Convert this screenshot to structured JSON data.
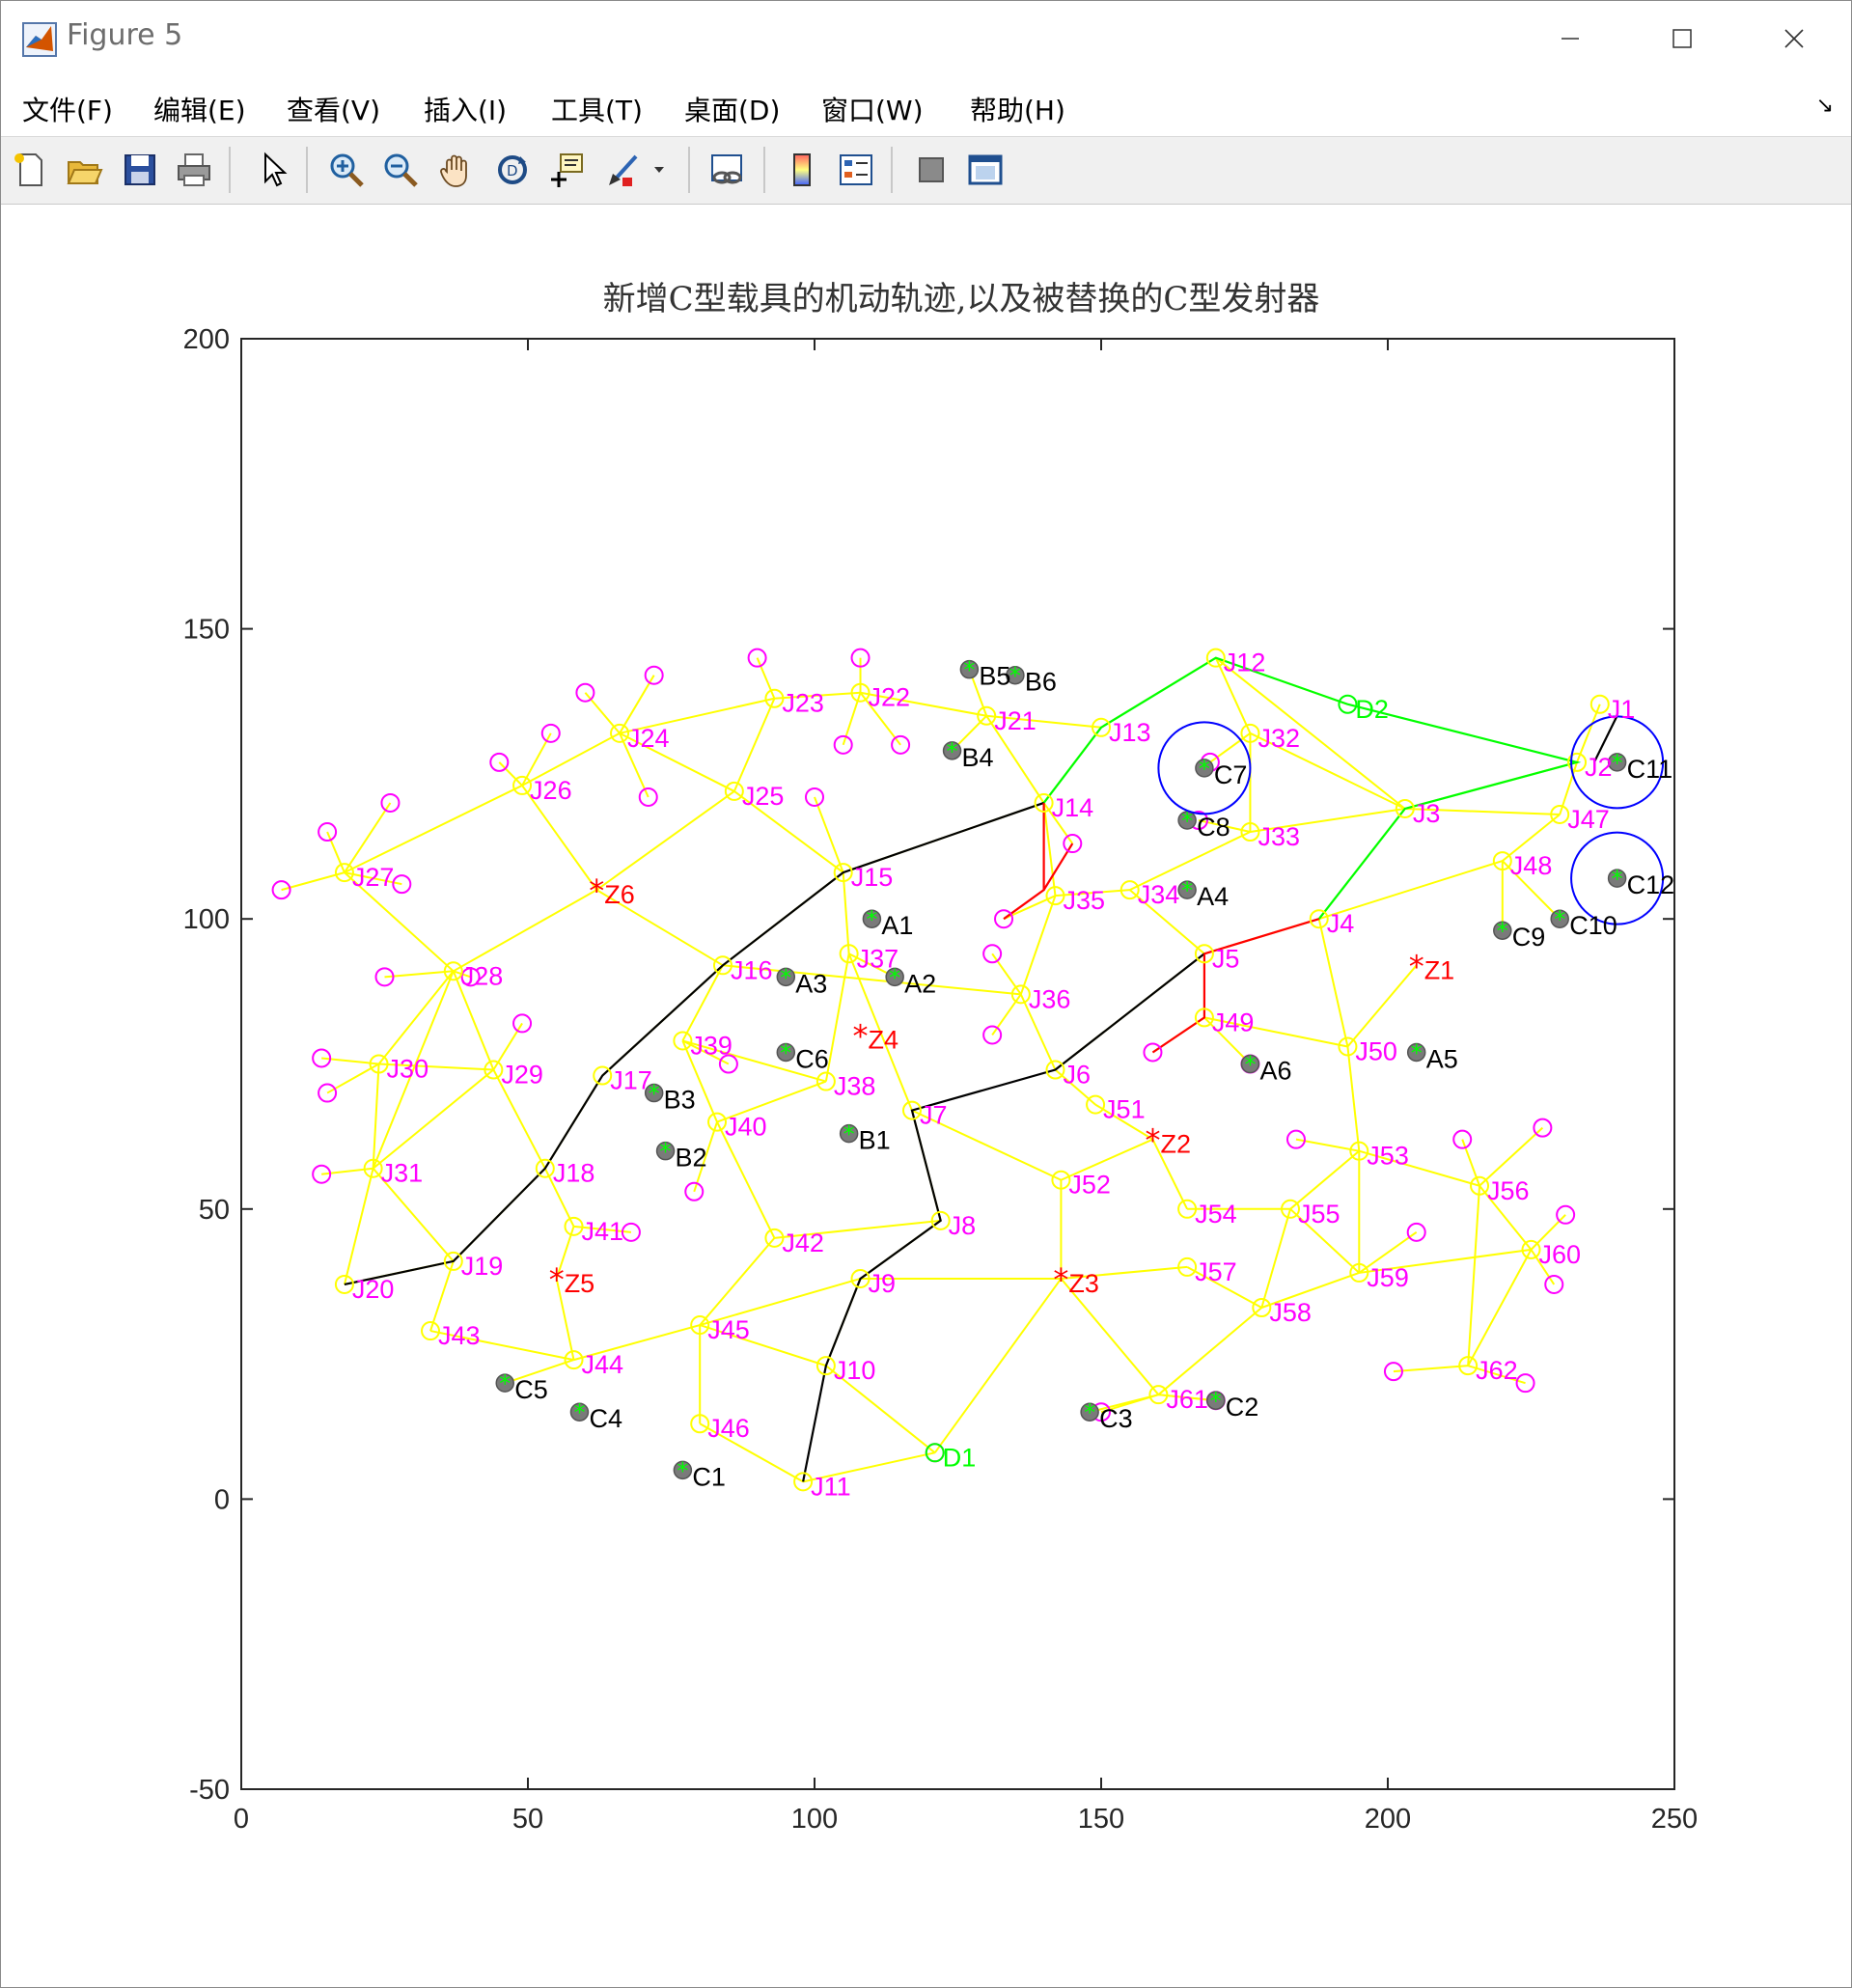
{
  "window": {
    "title": "Figure 5"
  },
  "menu": [
    "文件(F)",
    "编辑(E)",
    "查看(V)",
    "插入(I)",
    "工具(T)",
    "桌面(D)",
    "窗口(W)",
    "帮助(H)"
  ],
  "toolbar": {
    "buttons": [
      "new-figure-icon",
      "open-file-icon",
      "save-icon",
      "print-icon",
      "pointer-icon",
      "zoom-in-icon",
      "zoom-out-icon",
      "pan-icon",
      "rotate-3d-icon",
      "data-cursor-icon",
      "brush-icon",
      "link-plot-icon",
      "colorbar-icon",
      "legend-icon",
      "hide-plot-tools-icon",
      "show-plot-tools-icon"
    ]
  },
  "chart_data": {
    "type": "scatter",
    "title": "新增C型载具的机动轨迹,以及被替换的C型发射器",
    "xlabel": "",
    "ylabel": "",
    "xlim": [
      0,
      250
    ],
    "ylim": [
      -50,
      200
    ],
    "xticks": [
      "0",
      "50",
      "100",
      "150",
      "200",
      "250"
    ],
    "yticks": [
      "-50",
      "0",
      "50",
      "100",
      "150",
      "200"
    ],
    "grid": false,
    "colors": {
      "roads": "#ffff00",
      "junction": "#ffff00",
      "leaf": "#ff00ff",
      "launcher": "#00ff00",
      "launcher_edge": "#555555",
      "warehouse": "#ff0000",
      "path_black": "#000000",
      "path_red": "#ff0000",
      "path_green": "#00ff00",
      "circle": "#0000ff",
      "label_j": "#ff00ff",
      "label_z": "#ff0000",
      "label_d": "#00ff00",
      "label_launcher": "#000000"
    },
    "junctions": [
      {
        "name": "J1",
        "x": 237,
        "y": 137
      },
      {
        "name": "J2",
        "x": 233,
        "y": 127
      },
      {
        "name": "J3",
        "x": 203,
        "y": 119
      },
      {
        "name": "J4",
        "x": 188,
        "y": 100
      },
      {
        "name": "J5",
        "x": 168,
        "y": 94
      },
      {
        "name": "J6",
        "x": 142,
        "y": 74
      },
      {
        "name": "J7",
        "x": 117,
        "y": 67
      },
      {
        "name": "J8",
        "x": 122,
        "y": 48
      },
      {
        "name": "J9",
        "x": 108,
        "y": 38
      },
      {
        "name": "J10",
        "x": 102,
        "y": 23
      },
      {
        "name": "J11",
        "x": 98,
        "y": 3
      },
      {
        "name": "J12",
        "x": 170,
        "y": 145
      },
      {
        "name": "J13",
        "x": 150,
        "y": 133
      },
      {
        "name": "J14",
        "x": 140,
        "y": 120
      },
      {
        "name": "J15",
        "x": 105,
        "y": 108
      },
      {
        "name": "J16",
        "x": 84,
        "y": 92
      },
      {
        "name": "J17",
        "x": 63,
        "y": 73
      },
      {
        "name": "J18",
        "x": 53,
        "y": 57
      },
      {
        "name": "J19",
        "x": 37,
        "y": 41
      },
      {
        "name": "J20",
        "x": 18,
        "y": 37
      },
      {
        "name": "J21",
        "x": 130,
        "y": 135
      },
      {
        "name": "J22",
        "x": 108,
        "y": 139
      },
      {
        "name": "J23",
        "x": 93,
        "y": 138
      },
      {
        "name": "J24",
        "x": 66,
        "y": 132
      },
      {
        "name": "J25",
        "x": 86,
        "y": 122
      },
      {
        "name": "J26",
        "x": 49,
        "y": 123
      },
      {
        "name": "J27",
        "x": 18,
        "y": 108
      },
      {
        "name": "J28",
        "x": 37,
        "y": 91
      },
      {
        "name": "J29",
        "x": 44,
        "y": 74
      },
      {
        "name": "J30",
        "x": 24,
        "y": 75
      },
      {
        "name": "J31",
        "x": 23,
        "y": 57
      },
      {
        "name": "J32",
        "x": 176,
        "y": 132
      },
      {
        "name": "J33",
        "x": 176,
        "y": 115
      },
      {
        "name": "J34",
        "x": 155,
        "y": 105
      },
      {
        "name": "J35",
        "x": 142,
        "y": 104
      },
      {
        "name": "J36",
        "x": 136,
        "y": 87
      },
      {
        "name": "J37",
        "x": 106,
        "y": 94
      },
      {
        "name": "J38",
        "x": 102,
        "y": 72
      },
      {
        "name": "J39",
        "x": 77,
        "y": 79
      },
      {
        "name": "J40",
        "x": 83,
        "y": 65
      },
      {
        "name": "J41",
        "x": 58,
        "y": 47
      },
      {
        "name": "J42",
        "x": 93,
        "y": 45
      },
      {
        "name": "J43",
        "x": 33,
        "y": 29
      },
      {
        "name": "J44",
        "x": 58,
        "y": 24
      },
      {
        "name": "J45",
        "x": 80,
        "y": 30
      },
      {
        "name": "J46",
        "x": 80,
        "y": 13
      },
      {
        "name": "J47",
        "x": 230,
        "y": 118
      },
      {
        "name": "J48",
        "x": 220,
        "y": 110
      },
      {
        "name": "J49",
        "x": 168,
        "y": 83
      },
      {
        "name": "J50",
        "x": 193,
        "y": 78
      },
      {
        "name": "J51",
        "x": 149,
        "y": 68
      },
      {
        "name": "J52",
        "x": 143,
        "y": 55
      },
      {
        "name": "J53",
        "x": 195,
        "y": 60
      },
      {
        "name": "J54",
        "x": 165,
        "y": 50
      },
      {
        "name": "J55",
        "x": 183,
        "y": 50
      },
      {
        "name": "J56",
        "x": 216,
        "y": 54
      },
      {
        "name": "J57",
        "x": 165,
        "y": 40
      },
      {
        "name": "J58",
        "x": 178,
        "y": 33
      },
      {
        "name": "J59",
        "x": 195,
        "y": 39
      },
      {
        "name": "J60",
        "x": 225,
        "y": 43
      },
      {
        "name": "J61",
        "x": 160,
        "y": 18
      },
      {
        "name": "J62",
        "x": 214,
        "y": 23
      }
    ],
    "leaves": [
      [
        7,
        105
      ],
      [
        15,
        115
      ],
      [
        26,
        120
      ],
      [
        28,
        106
      ],
      [
        25,
        90
      ],
      [
        45,
        127
      ],
      [
        54,
        132
      ],
      [
        60,
        139
      ],
      [
        72,
        142
      ],
      [
        90,
        145
      ],
      [
        108,
        145
      ],
      [
        105,
        130
      ],
      [
        115,
        130
      ],
      [
        71,
        121
      ],
      [
        100,
        121
      ],
      [
        14,
        76
      ],
      [
        15,
        70
      ],
      [
        14,
        56
      ],
      [
        40,
        90
      ],
      [
        49,
        82
      ],
      [
        85,
        75
      ],
      [
        79,
        53
      ],
      [
        68,
        46
      ],
      [
        121,
        8
      ],
      [
        145,
        113
      ],
      [
        133,
        100
      ],
      [
        131,
        94
      ],
      [
        131,
        80
      ],
      [
        159,
        77
      ],
      [
        184,
        62
      ],
      [
        213,
        62
      ],
      [
        227,
        64
      ],
      [
        231,
        49
      ],
      [
        229,
        37
      ],
      [
        205,
        46
      ],
      [
        201,
        22
      ],
      [
        224,
        20
      ],
      [
        150,
        15
      ],
      [
        170,
        17
      ],
      [
        169,
        127
      ],
      [
        167,
        117
      ],
      [
        176,
        75
      ]
    ],
    "edges": [
      [
        "J1",
        "J2"
      ],
      [
        "J2",
        "J3"
      ],
      [
        "J2",
        "J47"
      ],
      [
        "J3",
        "J12"
      ],
      [
        "J3",
        "J32"
      ],
      [
        "J3",
        "J33"
      ],
      [
        "J3",
        "J47"
      ],
      [
        "J3",
        "J4"
      ],
      [
        "J4",
        "J5"
      ],
      [
        "J4",
        "J50"
      ],
      [
        "J4",
        "J48"
      ],
      [
        "J5",
        "J34"
      ],
      [
        "J5",
        "J49"
      ],
      [
        "J5",
        "J6"
      ],
      [
        "J6",
        "J36"
      ],
      [
        "J6",
        "J51"
      ],
      [
        "J7",
        "J37"
      ],
      [
        "J7",
        "J8"
      ],
      [
        "J7",
        "J52"
      ],
      [
        "J8",
        "J42"
      ],
      [
        "J8",
        "J9"
      ],
      [
        "J9",
        "J45"
      ],
      [
        "J9",
        "J10"
      ],
      [
        "J9",
        "Z3"
      ],
      [
        "J10",
        "J45"
      ],
      [
        "J10",
        "D1"
      ],
      [
        "J11",
        "D1"
      ],
      [
        "D1",
        "Z3"
      ],
      [
        "J12",
        "J13"
      ],
      [
        "J12",
        "J32"
      ],
      [
        "J12",
        "D2"
      ],
      [
        "J13",
        "J21"
      ],
      [
        "J13",
        "J14"
      ],
      [
        "J14",
        "J15"
      ],
      [
        "J14",
        "J35"
      ],
      [
        "J15",
        "J16"
      ],
      [
        "J15",
        "J25"
      ],
      [
        "J15",
        "J37"
      ],
      [
        "J16",
        "J17"
      ],
      [
        "J16",
        "J39"
      ],
      [
        "J16",
        "Z6"
      ],
      [
        "J17",
        "J18"
      ],
      [
        "J18",
        "J19"
      ],
      [
        "J18",
        "J29"
      ],
      [
        "J18",
        "J41"
      ],
      [
        "J19",
        "J20"
      ],
      [
        "J19",
        "J31"
      ],
      [
        "J19",
        "J43"
      ],
      [
        "J20",
        "J31"
      ],
      [
        "J21",
        "J22"
      ],
      [
        "J22",
        "J23"
      ],
      [
        "J23",
        "J24"
      ],
      [
        "J23",
        "J25"
      ],
      [
        "J24",
        "J25"
      ],
      [
        "J24",
        "J26"
      ],
      [
        "J25",
        "Z6"
      ],
      [
        "J26",
        "J27"
      ],
      [
        "J26",
        "Z6"
      ],
      [
        "J27",
        "J28"
      ],
      [
        "J28",
        "Z6"
      ],
      [
        "J28",
        "J29"
      ],
      [
        "J28",
        "J30"
      ],
      [
        "J28",
        "J31"
      ],
      [
        "J29",
        "J30"
      ],
      [
        "J29",
        "J31"
      ],
      [
        "J30",
        "J31"
      ],
      [
        "J32",
        "J33"
      ],
      [
        "J33",
        "J34"
      ],
      [
        "J34",
        "J35"
      ],
      [
        "J35",
        "J36"
      ],
      [
        "J36",
        "J16"
      ],
      [
        "J37",
        "J38"
      ],
      [
        "J37",
        "A2"
      ],
      [
        "J38",
        "J39"
      ],
      [
        "J38",
        "J40"
      ],
      [
        "J39",
        "J40"
      ],
      [
        "J40",
        "J42"
      ],
      [
        "J41",
        "Z5"
      ],
      [
        "Z5",
        "J44"
      ],
      [
        "J43",
        "J44"
      ],
      [
        "J44",
        "C5"
      ],
      [
        "J44",
        "J45"
      ],
      [
        "J45",
        "J46"
      ],
      [
        "J46",
        "J11"
      ],
      [
        "J47",
        "J48"
      ],
      [
        "J48",
        "C9"
      ],
      [
        "J48",
        "C10"
      ],
      [
        "J49",
        "J50"
      ],
      [
        "J50",
        "Z1"
      ],
      [
        "J50",
        "J53"
      ],
      [
        "J51",
        "Z2"
      ],
      [
        "Z2",
        "J54"
      ],
      [
        "J52",
        "Z2"
      ],
      [
        "J52",
        "Z3"
      ],
      [
        "Z3",
        "J57"
      ],
      [
        "Z3",
        "J61"
      ],
      [
        "J53",
        "J55"
      ],
      [
        "J53",
        "J56"
      ],
      [
        "J53",
        "J59"
      ],
      [
        "J54",
        "J55"
      ],
      [
        "J55",
        "J58"
      ],
      [
        "J55",
        "J59"
      ],
      [
        "J56",
        "J60"
      ],
      [
        "J57",
        "J58"
      ],
      [
        "J58",
        "J61"
      ],
      [
        "J58",
        "J59"
      ],
      [
        "J59",
        "J60"
      ],
      [
        "J60",
        "J62"
      ],
      [
        "J61",
        "C3"
      ],
      [
        "J61",
        "C2"
      ],
      [
        "J62",
        "J56"
      ],
      [
        "J42",
        "J45"
      ],
      [
        "J21",
        "J14"
      ],
      [
        "J21",
        "B4"
      ],
      [
        "J21",
        "B5"
      ]
    ],
    "launchers": [
      {
        "name": "A1",
        "x": 110,
        "y": 100
      },
      {
        "name": "A2",
        "x": 114,
        "y": 90
      },
      {
        "name": "A3",
        "x": 95,
        "y": 90
      },
      {
        "name": "A4",
        "x": 165,
        "y": 105
      },
      {
        "name": "A5",
        "x": 205,
        "y": 77
      },
      {
        "name": "A6",
        "x": 176,
        "y": 75
      },
      {
        "name": "B1",
        "x": 106,
        "y": 63
      },
      {
        "name": "B2",
        "x": 74,
        "y": 60
      },
      {
        "name": "B3",
        "x": 72,
        "y": 70
      },
      {
        "name": "B4",
        "x": 124,
        "y": 129
      },
      {
        "name": "B5",
        "x": 127,
        "y": 143
      },
      {
        "name": "B6",
        "x": 135,
        "y": 142
      },
      {
        "name": "C1",
        "x": 77,
        "y": 5
      },
      {
        "name": "C2",
        "x": 170,
        "y": 17
      },
      {
        "name": "C3",
        "x": 148,
        "y": 15
      },
      {
        "name": "C4",
        "x": 59,
        "y": 15
      },
      {
        "name": "C5",
        "x": 46,
        "y": 20
      },
      {
        "name": "C6",
        "x": 95,
        "y": 77
      },
      {
        "name": "C7",
        "x": 168,
        "y": 126
      },
      {
        "name": "C8",
        "x": 165,
        "y": 117
      },
      {
        "name": "C9",
        "x": 220,
        "y": 98
      },
      {
        "name": "C10",
        "x": 230,
        "y": 100
      },
      {
        "name": "C11",
        "x": 240,
        "y": 127
      },
      {
        "name": "C12",
        "x": 240,
        "y": 107
      }
    ],
    "warehouses": [
      {
        "name": "Z1",
        "x": 205,
        "y": 92
      },
      {
        "name": "Z2",
        "x": 159,
        "y": 62
      },
      {
        "name": "Z3",
        "x": 143,
        "y": 38
      },
      {
        "name": "Z4",
        "x": 108,
        "y": 80
      },
      {
        "name": "Z5",
        "x": 55,
        "y": 38
      },
      {
        "name": "Z6",
        "x": 62,
        "y": 105
      }
    ],
    "depots": [
      {
        "name": "D1",
        "x": 121,
        "y": 8
      },
      {
        "name": "D2",
        "x": 193,
        "y": 137
      }
    ],
    "paths": {
      "black": [
        [
          [
            18,
            37
          ],
          [
            37,
            41
          ],
          [
            53,
            57
          ],
          [
            63,
            73
          ],
          [
            84,
            92
          ],
          [
            105,
            108
          ],
          [
            140,
            120
          ]
        ],
        [
          [
            98,
            3
          ],
          [
            102,
            23
          ],
          [
            108,
            38
          ],
          [
            122,
            48
          ],
          [
            117,
            67
          ],
          [
            142,
            74
          ],
          [
            168,
            94
          ]
        ],
        [
          [
            236,
            127
          ],
          [
            240,
            135
          ]
        ]
      ],
      "red": [
        [
          [
            140,
            120
          ],
          [
            140,
            105
          ],
          [
            133,
            100
          ]
        ],
        [
          [
            140,
            105
          ],
          [
            145,
            113
          ]
        ],
        [
          [
            168,
            94
          ],
          [
            168,
            83
          ],
          [
            159,
            77
          ]
        ],
        [
          [
            168,
            94
          ],
          [
            188,
            100
          ]
        ]
      ],
      "green": [
        [
          [
            140,
            120
          ],
          [
            150,
            133
          ],
          [
            170,
            145
          ],
          [
            193,
            137
          ],
          [
            233,
            127
          ],
          [
            203,
            119
          ],
          [
            188,
            100
          ]
        ]
      ]
    },
    "circles": [
      {
        "x": 168,
        "y": 126,
        "r": 8
      },
      {
        "x": 240,
        "y": 127,
        "r": 8
      },
      {
        "x": 240,
        "y": 107,
        "r": 8
      }
    ]
  }
}
